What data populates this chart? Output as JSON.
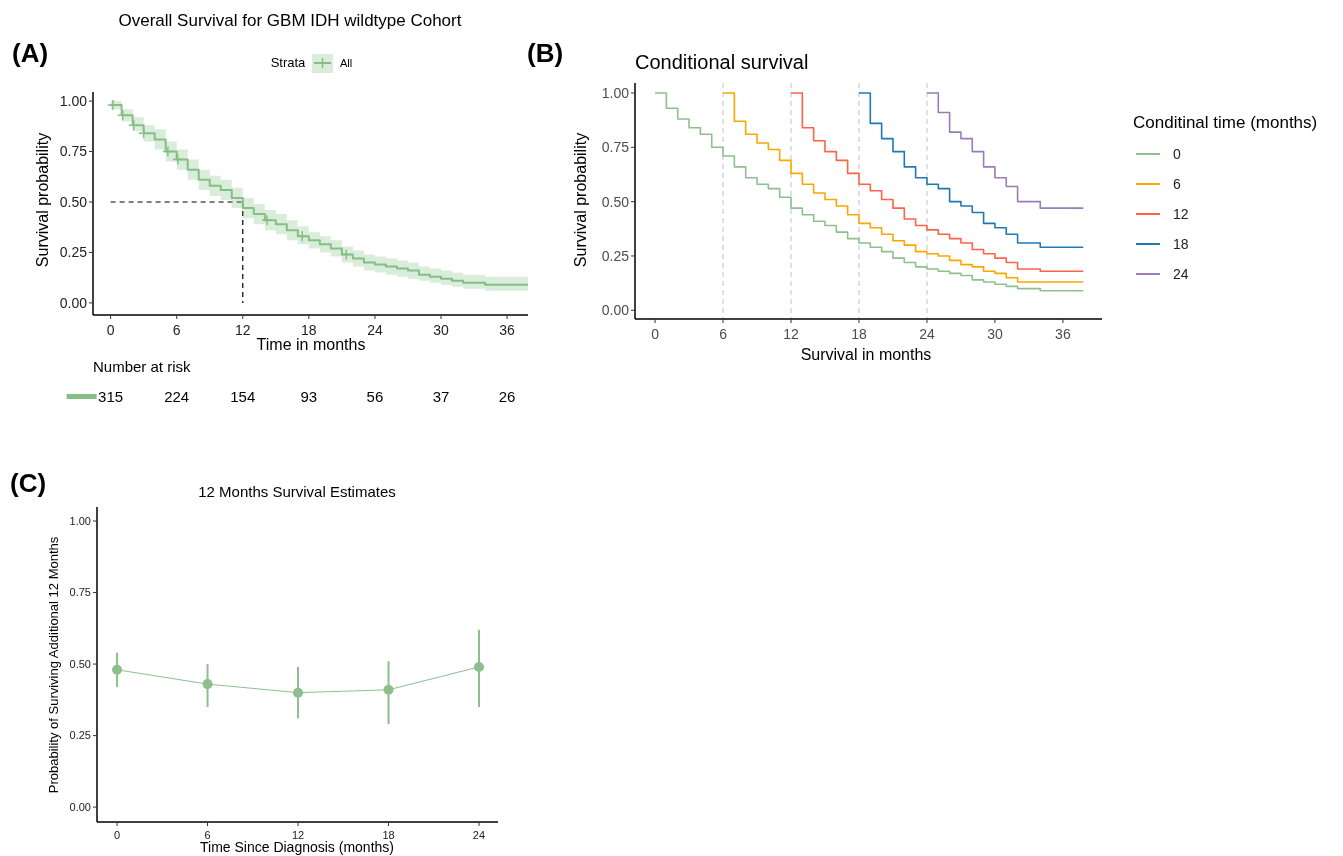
{
  "chart_data": [
    {
      "type": "step",
      "title": "Overall Survival for GBM IDH wildtype Cohort",
      "xlabel": "Time in months",
      "ylabel": "Survival probability",
      "legend_title": "Strata",
      "legend": "top",
      "xlim": [
        -1.6,
        37.9
      ],
      "xticks": [
        0,
        6,
        12,
        18,
        24,
        30,
        36
      ],
      "ylim": [
        -0.06,
        1.045
      ],
      "yticks": [
        {
          "value": 0,
          "label": "0.00"
        },
        {
          "value": 0.25,
          "label": "0.25"
        },
        {
          "value": 0.5,
          "label": "0.50"
        },
        {
          "value": 0.75,
          "label": "0.75"
        },
        {
          "value": 1,
          "label": "1.00"
        }
      ],
      "ref_lines": [
        {
          "axis": "y",
          "value": 0.5,
          "color": "#000000",
          "line_style": "dashed"
        },
        {
          "axis": "x",
          "value": 12,
          "color": "#000000",
          "line_style": "dashed"
        }
      ],
      "series": [
        {
          "name": "All",
          "color": "#86bf86",
          "x": [
            0,
            1,
            2,
            3,
            4,
            5,
            6,
            7,
            8,
            9,
            10,
            11,
            12,
            13,
            14,
            15,
            16,
            17,
            18,
            19,
            20,
            21,
            22,
            23,
            24,
            25,
            26,
            27,
            28,
            29,
            30,
            31,
            32,
            34,
            37.9
          ],
          "values": [
            0.98,
            0.93,
            0.88,
            0.84,
            0.81,
            0.75,
            0.71,
            0.66,
            0.61,
            0.58,
            0.56,
            0.52,
            0.47,
            0.44,
            0.41,
            0.39,
            0.36,
            0.33,
            0.31,
            0.29,
            0.27,
            0.24,
            0.22,
            0.2,
            0.19,
            0.18,
            0.17,
            0.16,
            0.14,
            0.13,
            0.12,
            0.11,
            0.1,
            0.09,
            0.09
          ],
          "lower": [
            0.96,
            0.9,
            0.85,
            0.8,
            0.76,
            0.7,
            0.66,
            0.61,
            0.56,
            0.53,
            0.51,
            0.47,
            0.42,
            0.39,
            0.36,
            0.34,
            0.31,
            0.29,
            0.27,
            0.25,
            0.23,
            0.2,
            0.18,
            0.16,
            0.15,
            0.14,
            0.13,
            0.12,
            0.11,
            0.1,
            0.09,
            0.08,
            0.07,
            0.06,
            0.06
          ],
          "upper": [
            1.0,
            0.96,
            0.92,
            0.88,
            0.86,
            0.8,
            0.76,
            0.71,
            0.66,
            0.63,
            0.61,
            0.57,
            0.52,
            0.49,
            0.46,
            0.44,
            0.41,
            0.38,
            0.35,
            0.33,
            0.31,
            0.28,
            0.26,
            0.24,
            0.23,
            0.22,
            0.21,
            0.2,
            0.18,
            0.17,
            0.16,
            0.15,
            0.14,
            0.13,
            0.13
          ]
        },
        {
          "type": "scatter",
          "marker": "cross",
          "color": "#86bf86",
          "x": [
            0.2,
            1.1,
            2.1,
            3,
            5.2,
            6.1,
            14.2,
            17.4,
            21.4
          ],
          "values": [
            0.98,
            0.93,
            0.88,
            0.84,
            0.75,
            0.71,
            0.41,
            0.33,
            0.24
          ]
        }
      ],
      "annotations": [
        "(A)",
        "Number at risk",
        "315",
        "224",
        "154",
        "93",
        "56",
        "37",
        "26"
      ]
    },
    {
      "type": "step",
      "title": "Conditional survival",
      "xlabel": "Survival in months",
      "ylabel": "Survival probability",
      "legend_title": "Conditinal time (months)",
      "legend": "right",
      "xlim": [
        -1.77,
        39.45
      ],
      "xticks": [
        0,
        6,
        12,
        18,
        24,
        30,
        36
      ],
      "ylim": [
        -0.04,
        1.046
      ],
      "yticks": [
        {
          "value": 0,
          "label": "0.00"
        },
        {
          "value": 0.25,
          "label": "0.25"
        },
        {
          "value": 0.5,
          "label": "0.50"
        },
        {
          "value": 0.75,
          "label": "0.75"
        },
        {
          "value": 1,
          "label": "1.00"
        }
      ],
      "ref_lines": [
        {
          "axis": "x",
          "value": 6,
          "color": "#cccccc",
          "line_style": "dashed"
        },
        {
          "axis": "x",
          "value": 12,
          "color": "#cccccc",
          "line_style": "dashed"
        },
        {
          "axis": "x",
          "value": 18,
          "color": "#cccccc",
          "line_style": "dashed"
        },
        {
          "axis": "x",
          "value": 24,
          "color": "#cccccc",
          "line_style": "dashed"
        }
      ],
      "series": [
        {
          "name": "0",
          "color": "#8dc08d",
          "x": [
            0,
            1,
            2,
            3,
            4,
            5,
            6,
            7,
            8,
            9,
            10,
            11,
            12,
            13,
            14,
            15,
            16,
            17,
            18,
            19,
            20,
            21,
            22,
            23,
            24,
            25,
            26,
            27,
            28,
            29,
            30,
            31,
            32,
            34,
            37.8
          ],
          "values": [
            1.0,
            0.93,
            0.88,
            0.84,
            0.81,
            0.75,
            0.71,
            0.66,
            0.61,
            0.58,
            0.56,
            0.52,
            0.47,
            0.44,
            0.41,
            0.39,
            0.36,
            0.33,
            0.31,
            0.29,
            0.27,
            0.24,
            0.22,
            0.2,
            0.19,
            0.18,
            0.17,
            0.16,
            0.14,
            0.13,
            0.12,
            0.11,
            0.1,
            0.09,
            0.09
          ]
        },
        {
          "name": "6",
          "color": "#ffa500",
          "x": [
            6,
            7,
            8,
            9,
            10,
            11,
            12,
            13,
            14,
            15,
            16,
            17,
            18,
            19,
            20,
            21,
            22,
            23,
            24,
            25,
            26,
            27,
            28,
            29,
            30,
            31,
            32,
            34,
            37.8
          ],
          "values": [
            1.0,
            0.87,
            0.81,
            0.77,
            0.74,
            0.69,
            0.63,
            0.58,
            0.54,
            0.51,
            0.48,
            0.44,
            0.4,
            0.38,
            0.35,
            0.32,
            0.3,
            0.27,
            0.26,
            0.25,
            0.23,
            0.21,
            0.2,
            0.18,
            0.17,
            0.15,
            0.13,
            0.13,
            0.13
          ]
        },
        {
          "name": "12",
          "color": "#ff6347",
          "x": [
            12,
            13,
            14,
            15,
            16,
            17,
            18,
            19,
            20,
            21,
            22,
            23,
            24,
            25,
            26,
            27,
            28,
            29,
            30,
            31,
            32,
            34,
            37.8
          ],
          "values": [
            1.0,
            0.84,
            0.78,
            0.73,
            0.69,
            0.63,
            0.58,
            0.55,
            0.51,
            0.47,
            0.42,
            0.39,
            0.37,
            0.35,
            0.33,
            0.31,
            0.28,
            0.26,
            0.24,
            0.22,
            0.19,
            0.18,
            0.18
          ]
        },
        {
          "name": "18",
          "color": "#1f78b4",
          "x": [
            18,
            19,
            20,
            21,
            22,
            23,
            24,
            25,
            26,
            27,
            28,
            29,
            30,
            31,
            32,
            34,
            37.8
          ],
          "values": [
            1.0,
            0.86,
            0.79,
            0.73,
            0.66,
            0.61,
            0.58,
            0.56,
            0.5,
            0.48,
            0.45,
            0.4,
            0.38,
            0.35,
            0.31,
            0.29,
            0.29
          ]
        },
        {
          "name": "24",
          "color": "#9b7bb8",
          "x": [
            24,
            25,
            26,
            27,
            28,
            29,
            30,
            31,
            32,
            34,
            37.8
          ],
          "values": [
            1.0,
            0.91,
            0.82,
            0.79,
            0.73,
            0.66,
            0.61,
            0.57,
            0.5,
            0.47,
            0.47
          ]
        }
      ],
      "annotations": [
        "(B)"
      ]
    },
    {
      "type": "line",
      "title": "12 Months Survival Estimates",
      "xlabel": "Time Since Diagnosis (months)",
      "ylabel": "Probability of Surviving Additional 12 Months",
      "marker": "circle",
      "xlim": [
        -1.33,
        25.26
      ],
      "xticks": [
        0,
        6,
        12,
        18,
        24
      ],
      "ylim": [
        -0.052,
        1.049
      ],
      "yticks": [
        {
          "value": 0,
          "label": "0.00"
        },
        {
          "value": 0.25,
          "label": "0.25"
        },
        {
          "value": 0.5,
          "label": "0.50"
        },
        {
          "value": 0.75,
          "label": "0.75"
        },
        {
          "value": 1,
          "label": "1.00"
        }
      ],
      "series": [
        {
          "color": "#8dbf8d",
          "x": [
            0,
            6,
            12,
            18,
            24
          ],
          "values": [
            0.48,
            0.43,
            0.4,
            0.41,
            0.49
          ],
          "errors": [
            [
              0.42,
              0.54
            ],
            [
              0.35,
              0.5
            ],
            [
              0.31,
              0.49
            ],
            [
              0.29,
              0.51
            ],
            [
              0.35,
              0.62
            ]
          ]
        }
      ],
      "annotations": [
        "(C)"
      ]
    }
  ]
}
